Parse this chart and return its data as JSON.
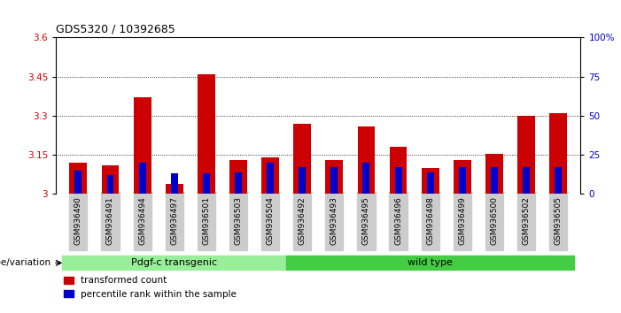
{
  "title": "GDS5320 / 10392685",
  "samples": [
    "GSM936490",
    "GSM936491",
    "GSM936494",
    "GSM936497",
    "GSM936501",
    "GSM936503",
    "GSM936504",
    "GSM936492",
    "GSM936493",
    "GSM936495",
    "GSM936496",
    "GSM936498",
    "GSM936499",
    "GSM936500",
    "GSM936502",
    "GSM936505"
  ],
  "transformed_count": [
    3.12,
    3.11,
    3.37,
    3.04,
    3.46,
    3.13,
    3.14,
    3.27,
    3.13,
    3.26,
    3.18,
    3.1,
    3.13,
    3.155,
    3.3,
    3.31
  ],
  "percentile_rank": [
    15,
    12,
    20,
    13,
    13,
    14,
    20,
    17,
    17,
    20,
    17,
    14,
    17,
    17,
    17,
    17
  ],
  "ylim_left": [
    3.0,
    3.6
  ],
  "ylim_right": [
    0,
    100
  ],
  "yticks_left": [
    3.0,
    3.15,
    3.3,
    3.45,
    3.6
  ],
  "yticks_right": [
    0,
    25,
    50,
    75,
    100
  ],
  "ytick_labels_left": [
    "3",
    "3.15",
    "3.3",
    "3.45",
    "3.6"
  ],
  "ytick_labels_right": [
    "0",
    "25",
    "50",
    "75",
    "100%"
  ],
  "bar_color_red": "#cc0000",
  "bar_color_blue": "#0000cc",
  "group1_label": "Pdgf-c transgenic",
  "group2_label": "wild type",
  "group1_color": "#99ee99",
  "group2_color": "#44cc44",
  "group1_indices": [
    0,
    1,
    2,
    3,
    4,
    5,
    6
  ],
  "group2_indices": [
    7,
    8,
    9,
    10,
    11,
    12,
    13,
    14,
    15
  ],
  "genotype_label": "genotype/variation",
  "legend_red": "transformed count",
  "legend_blue": "percentile rank within the sample",
  "bar_width": 0.55,
  "blue_bar_width": 0.22,
  "background_color": "#ffffff",
  "plot_bg": "#ffffff",
  "tick_bg": "#cccccc",
  "left_axis_color": "#cc0000",
  "right_axis_color": "#0000cc"
}
